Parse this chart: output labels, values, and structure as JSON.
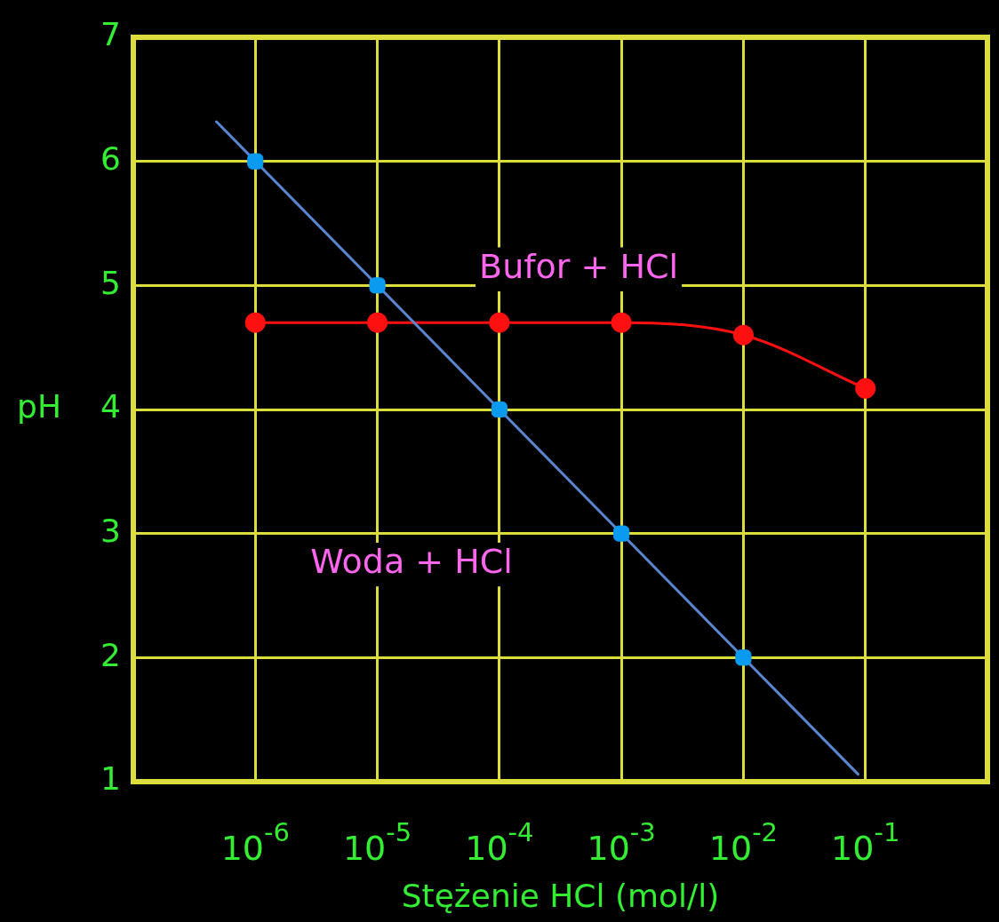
{
  "chart_data": {
    "type": "line",
    "xlabel": "Stężenie HCl (mol/l)",
    "ylabel": "pH",
    "log": "x",
    "grid": true,
    "legend": false,
    "xlim": [
      1e-07,
      1
    ],
    "xticks": [
      {
        "value": 1e-06,
        "label": "10$^{-6}$"
      },
      {
        "value": 1e-05,
        "label": "10$^{-5}$"
      },
      {
        "value": 0.0001,
        "label": "10$^{-4}$"
      },
      {
        "value": 0.001,
        "label": "10$^{-3}$"
      },
      {
        "value": 0.01,
        "label": "10$^{-2}$"
      },
      {
        "value": 0.1,
        "label": "10$^{-1}$"
      }
    ],
    "ylim": [
      1,
      7
    ],
    "yticks": [
      1,
      2,
      3,
      4,
      5,
      6,
      7
    ],
    "series": [
      {
        "name": "Woda + HCl",
        "type": "scatter",
        "marker": "square",
        "color": "#0a9af0",
        "x": [
          1e-06,
          1e-05,
          0.0001,
          0.001,
          0.01
        ],
        "values": [
          6,
          5,
          4,
          3,
          2
        ]
      },
      {
        "type": "line",
        "marker": "none",
        "color": "#5a86d0",
        "x": [
          4.8e-07,
          0.087
        ],
        "values": [
          6.32,
          1.06
        ]
      },
      {
        "name": "Bufor + HCl",
        "type": "line",
        "marker": "circle",
        "color": "#ff1010",
        "x": [
          1e-06,
          1e-05,
          0.0001,
          0.001,
          0.01,
          0.1
        ],
        "values": [
          4.7,
          4.7,
          4.7,
          4.7,
          4.6,
          4.17
        ]
      }
    ]
  }
}
